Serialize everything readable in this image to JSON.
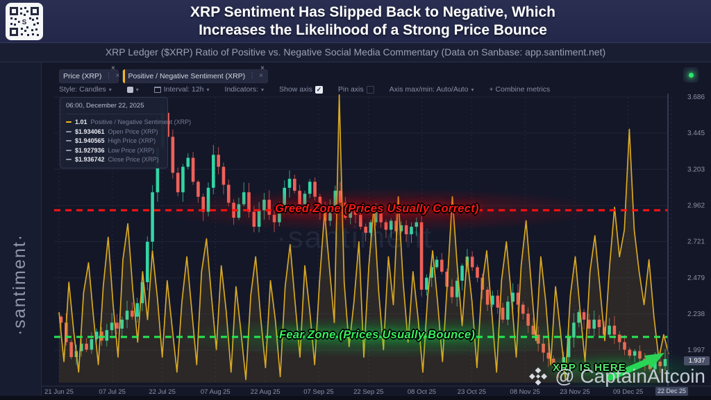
{
  "header": {
    "title_line1": "XRP Sentiment Has Slipped Back to Negative, Which",
    "title_line2": "Increases the Likelihood of a Strong Price Bounce",
    "subtitle": "XRP Ledger ($XRP) Ratio of Positive vs. Negative Social Media Commentary (Data on Sanbase: app.santiment.net)"
  },
  "brand": {
    "vertical_text": "·santiment·",
    "center_watermark": "·santiment"
  },
  "tabs": [
    {
      "label": "Price (XRP)",
      "accent": "#2fd7a6",
      "kebab": "⋮",
      "close": "×"
    },
    {
      "label": "Positive / Negative Sentiment (XRP)",
      "accent": "#f4b81f",
      "kebab": "⋮",
      "close": "×"
    }
  ],
  "toolbar": {
    "style_label": "Style: Candles",
    "interval_label": "Interval: 12h",
    "indicators_label": "Indicators:",
    "show_axis_label": "Show axis",
    "show_axis_check": "✓",
    "pin_axis_label": "Pin axis",
    "axis_maxmin_label": "Axis max/min: Auto/Auto",
    "combine_label": "+  Combine metrics"
  },
  "tooltip": {
    "timestamp": "06:00, December 22, 2025",
    "rows": [
      {
        "value": "1.01",
        "label": "Positive / Negative Sentiment (XRP)",
        "color": "#f4b81f"
      },
      {
        "value": "$1.934061",
        "label": "Open Price (XRP)",
        "color": "#8f96ab"
      },
      {
        "value": "$1.940565",
        "label": "High Price (XRP)",
        "color": "#8f96ab"
      },
      {
        "value": "$1.927936",
        "label": "Low Price (XRP)",
        "color": "#8f96ab"
      },
      {
        "value": "$1.936742",
        "label": "Close Price (XRP)",
        "color": "#8f96ab"
      }
    ]
  },
  "annotations": {
    "greed": {
      "text": "Greed Zone (Prices Usually Correct)",
      "price_level": 2.93,
      "line_color": "#ff1212"
    },
    "fear": {
      "text": "Fear Zone (Prices Usually Bounce)",
      "price_level": 2.085,
      "line_color": "#28e655"
    },
    "xrp_here": {
      "text": "XRP IS HERE"
    }
  },
  "credit": {
    "handle": "@ CaptainAltcoin"
  },
  "axis": {
    "current_price_label": "1.937",
    "current_date_label": "22 Dec 25"
  },
  "chart_data": {
    "type": "candlestick+line",
    "title": "XRP price (candles) with Positive/Negative sentiment ratio line (sentiment plotted on hidden axis; current ratio = 1.01)",
    "ylabel": "Price (USD)",
    "ylim": [
      1.8,
      3.73
    ],
    "x_range_days": 184,
    "grid": true,
    "y_ticks": [
      3.686,
      3.445,
      3.203,
      2.962,
      2.721,
      2.479,
      2.238,
      1.997
    ],
    "x_ticks": [
      {
        "label": "21 Jun 25",
        "day": 0
      },
      {
        "label": "07 Jul 25",
        "day": 16
      },
      {
        "label": "22 Jul 25",
        "day": 31
      },
      {
        "label": "07 Aug 25",
        "day": 47
      },
      {
        "label": "22 Aug 25",
        "day": 62
      },
      {
        "label": "07 Sep 25",
        "day": 78
      },
      {
        "label": "22 Sep 25",
        "day": 93
      },
      {
        "label": "08 Oct 25",
        "day": 109
      },
      {
        "label": "23 Oct 25",
        "day": 124
      },
      {
        "label": "08 Nov 25",
        "day": 140
      },
      {
        "label": "23 Nov 25",
        "day": 155
      },
      {
        "label": "09 Dec 25",
        "day": 171
      },
      {
        "label": "22 Dec 25",
        "day": 184,
        "highlight": true
      }
    ],
    "series": [
      {
        "name": "Price (XRP)",
        "type": "candles",
        "up_color": "#32d5a4",
        "down_color": "#ee6159",
        "closes": [
          2.18,
          2.05,
          1.95,
          1.99,
          2.04,
          2.0,
          2.07,
          2.12,
          2.06,
          2.13,
          2.18,
          2.14,
          2.2,
          2.26,
          2.22,
          2.31,
          2.45,
          2.72,
          3.05,
          3.35,
          3.58,
          3.42,
          3.18,
          3.05,
          3.22,
          3.28,
          3.12,
          3.02,
          2.92,
          3.08,
          3.3,
          3.22,
          3.1,
          2.98,
          2.88,
          2.97,
          3.05,
          2.92,
          2.82,
          2.93,
          3.0,
          2.9,
          2.85,
          2.96,
          3.08,
          3.14,
          3.06,
          2.97,
          3.04,
          3.12,
          3.02,
          2.93,
          2.86,
          2.96,
          3.06,
          2.98,
          2.88,
          2.95,
          2.9,
          2.82,
          2.78,
          2.85,
          2.92,
          2.85,
          2.8,
          2.86,
          2.79,
          2.83,
          2.77,
          2.82,
          2.85,
          2.4,
          2.48,
          2.55,
          2.6,
          2.52,
          2.42,
          2.35,
          2.46,
          2.56,
          2.62,
          2.55,
          2.48,
          2.4,
          2.3,
          2.36,
          2.28,
          2.2,
          2.32,
          2.38,
          2.3,
          2.24,
          2.16,
          2.1,
          2.04,
          1.98,
          1.94,
          1.9,
          1.86,
          1.95,
          2.08,
          2.18,
          2.25,
          2.2,
          2.14,
          2.2,
          2.15,
          2.1,
          2.16,
          2.1,
          2.05,
          2.0,
          1.96,
          1.99,
          1.94,
          1.9,
          1.87,
          1.92,
          1.89,
          1.937
        ]
      },
      {
        "name": "Positive / Negative Sentiment (XRP)",
        "type": "line",
        "color": "#d9a824",
        "fill": "rgba(217,168,36,0.12)",
        "current_value": 1.01,
        "axis": "hidden (values read in price-axis display space)",
        "values": [
          2.25,
          1.92,
          2.45,
          2.12,
          1.85,
          2.38,
          2.58,
          2.22,
          1.9,
          2.42,
          2.75,
          2.3,
          1.95,
          2.6,
          2.84,
          2.4,
          2.05,
          2.52,
          2.2,
          2.66,
          2.35,
          1.95,
          2.46,
          2.15,
          1.85,
          2.32,
          2.62,
          2.26,
          1.9,
          2.52,
          2.74,
          2.36,
          2.0,
          2.56,
          2.26,
          1.85,
          2.42,
          2.12,
          1.8,
          2.36,
          2.62,
          2.22,
          1.88,
          2.46,
          2.2,
          1.82,
          2.42,
          2.7,
          2.32,
          1.95,
          2.56,
          2.26,
          1.9,
          2.46,
          2.92,
          2.55,
          2.18,
          3.7,
          2.45,
          2.02,
          2.32,
          2.72,
          1.95,
          2.55,
          2.95,
          2.4,
          2.0,
          2.62,
          2.3,
          3.02,
          2.45,
          2.05,
          2.52,
          2.22,
          1.85,
          2.36,
          2.66,
          2.32,
          1.92,
          2.46,
          3.02,
          2.56,
          2.16,
          2.62,
          2.32,
          1.88,
          2.42,
          2.66,
          2.26,
          1.85,
          2.46,
          2.72,
          2.36,
          1.95,
          2.56,
          2.86,
          2.46,
          2.06,
          2.62,
          2.32,
          1.9,
          2.42,
          2.12,
          1.8,
          2.36,
          2.62,
          2.26,
          1.92,
          2.52,
          2.76,
          2.42,
          2.06,
          2.56,
          2.95,
          2.62,
          2.8,
          3.47,
          2.8,
          2.52,
          2.3,
          2.6,
          2.22,
          1.94,
          2.1,
          1.97
        ]
      }
    ]
  }
}
